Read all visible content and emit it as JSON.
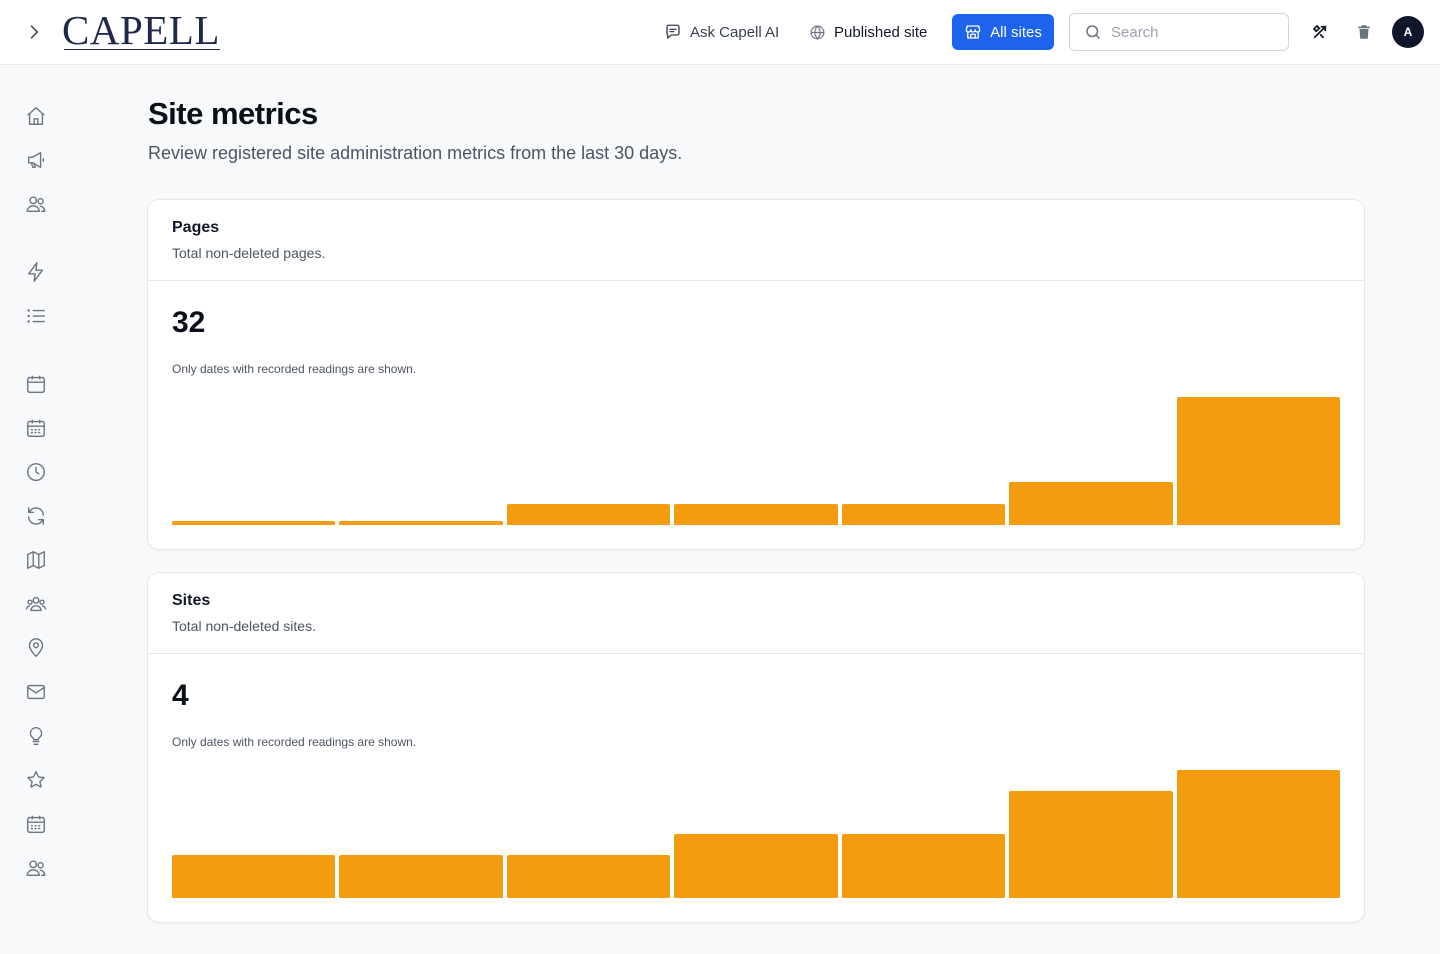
{
  "app": {
    "logo_text": "CAPELL"
  },
  "header": {
    "ask_ai_label": "Ask Capell AI",
    "published_site_label": "Published site",
    "all_sites_label": "All sites",
    "search_placeholder": "Search",
    "avatar_initial": "A"
  },
  "sidebar": {
    "icons": [
      "home-icon",
      "megaphone-icon",
      "users-icon",
      "lightning-icon",
      "list-icon",
      "calendar-icon",
      "calendar-grid-icon",
      "clock-icon",
      "refresh-icon",
      "map-icon",
      "group-icon",
      "map-pin-icon",
      "mail-icon",
      "lightbulb-icon",
      "star-icon",
      "calendar-days-icon",
      "users-alt-icon"
    ]
  },
  "page": {
    "title": "Site metrics",
    "subtitle": "Review registered site administration metrics from the last 30 days."
  },
  "cards": [
    {
      "title": "Pages",
      "description": "Total non-deleted pages.",
      "value": "32",
      "note": "Only dates with recorded readings are shown."
    },
    {
      "title": "Sites",
      "description": "Total non-deleted sites.",
      "value": "4",
      "note": "Only dates with recorded readings are shown."
    }
  ],
  "colors": {
    "accent": "#1d63ed",
    "bar": "#f39c0f",
    "avatar": "#0f172a"
  },
  "chart_data": [
    {
      "type": "bar",
      "series": [
        {
          "values": [
            1,
            1,
            5,
            5,
            5,
            10,
            30
          ]
        }
      ],
      "ylim": [
        0,
        30
      ],
      "grid": false
    },
    {
      "type": "bar",
      "series": [
        {
          "values": [
            1,
            1,
            1,
            1.5,
            1.5,
            2.5,
            3
          ]
        }
      ],
      "ylim": [
        0,
        3
      ],
      "grid": false
    }
  ]
}
